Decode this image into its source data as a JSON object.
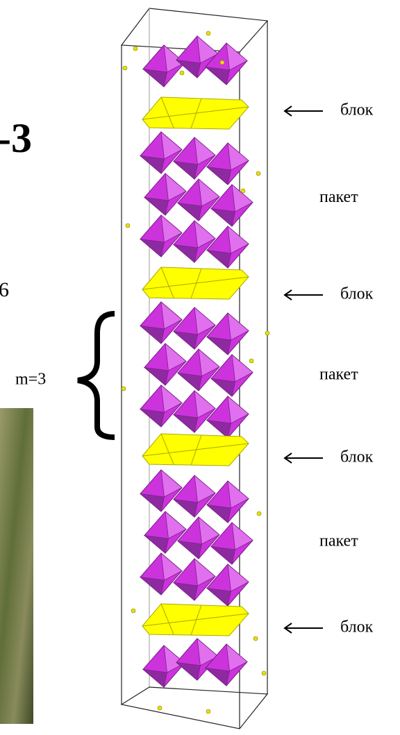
{
  "labels": {
    "left_title": "-3",
    "left_number": "6",
    "m_label": "m=3",
    "blocks": [
      "блок",
      "блок",
      "блок",
      "блок"
    ],
    "packets": [
      "пакет",
      "пакет",
      "пакет"
    ]
  }
}
